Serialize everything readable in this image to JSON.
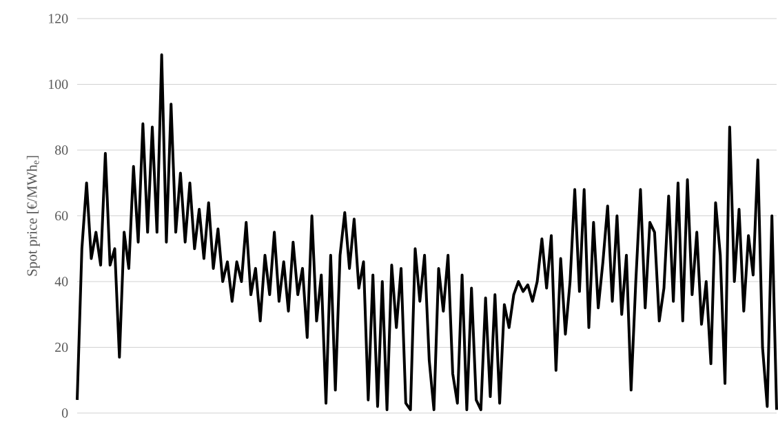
{
  "chart_data": {
    "type": "line",
    "ylabel": "Spot price [€/MWh$_{e}$]",
    "color": "#000000",
    "grid": "y",
    "tick_labels": "y",
    "ylim": [
      0,
      120
    ],
    "yticks": [
      0,
      20,
      40,
      60,
      80,
      100,
      120
    ],
    "categories": [
      null,
      null,
      null,
      null,
      null,
      null,
      null,
      null,
      null,
      null,
      null,
      null,
      null,
      null,
      null,
      null,
      null,
      null,
      null,
      null,
      null,
      null,
      null,
      null,
      null,
      null,
      null,
      null,
      null,
      null,
      null,
      null,
      null,
      null,
      null,
      null,
      null,
      null,
      null,
      null,
      null,
      null,
      null,
      null,
      null,
      null,
      null,
      null,
      null,
      null,
      null,
      null,
      null,
      null,
      null,
      null,
      null,
      null,
      null,
      null,
      null,
      null,
      null,
      null,
      null,
      null,
      null,
      null,
      null,
      null,
      null,
      null,
      null,
      null,
      null,
      null,
      null,
      null,
      null,
      null,
      null,
      null,
      null,
      null,
      null,
      null,
      null,
      null,
      null,
      null,
      null,
      null,
      null,
      null,
      null,
      null,
      null,
      null,
      null,
      null,
      null,
      null,
      null,
      null,
      null,
      null,
      null,
      null,
      null,
      null,
      null,
      null,
      null,
      null,
      null,
      null,
      null,
      null,
      null,
      null,
      null,
      null,
      null,
      null,
      null,
      null,
      null,
      null,
      null,
      null,
      null,
      null,
      null,
      null,
      null,
      null,
      null,
      null,
      null,
      null,
      null,
      null,
      null,
      null,
      null,
      null,
      null,
      null,
      null,
      null
    ],
    "values": [
      4,
      50,
      70,
      47,
      55,
      45,
      79,
      45,
      50,
      17,
      55,
      44,
      75,
      52,
      88,
      55,
      87,
      55,
      109,
      52,
      94,
      55,
      73,
      52,
      70,
      50,
      62,
      47,
      64,
      44,
      56,
      40,
      46,
      34,
      46,
      40,
      58,
      36,
      44,
      28,
      48,
      36,
      55,
      34,
      46,
      31,
      52,
      36,
      44,
      23,
      60,
      28,
      42,
      3,
      48,
      7,
      48,
      61,
      44,
      59,
      38,
      46,
      4,
      42,
      2,
      40,
      1,
      45,
      26,
      44,
      3,
      1,
      50,
      34,
      48,
      16,
      1,
      44,
      31,
      48,
      12,
      3,
      42,
      1,
      38,
      4,
      1,
      35,
      5,
      36,
      3,
      33,
      26,
      36,
      40,
      37,
      39,
      34,
      40,
      53,
      38,
      54,
      13,
      47,
      24,
      40,
      68,
      37,
      68,
      26,
      58,
      32,
      46,
      63,
      34,
      60,
      30,
      48,
      7,
      40,
      68,
      32,
      58,
      55,
      28,
      38,
      66,
      34,
      70,
      28,
      71,
      36,
      55,
      27,
      40,
      15,
      64,
      48,
      9,
      87,
      40,
      62,
      31,
      54,
      42,
      77,
      20,
      2,
      60,
      1
    ]
  }
}
